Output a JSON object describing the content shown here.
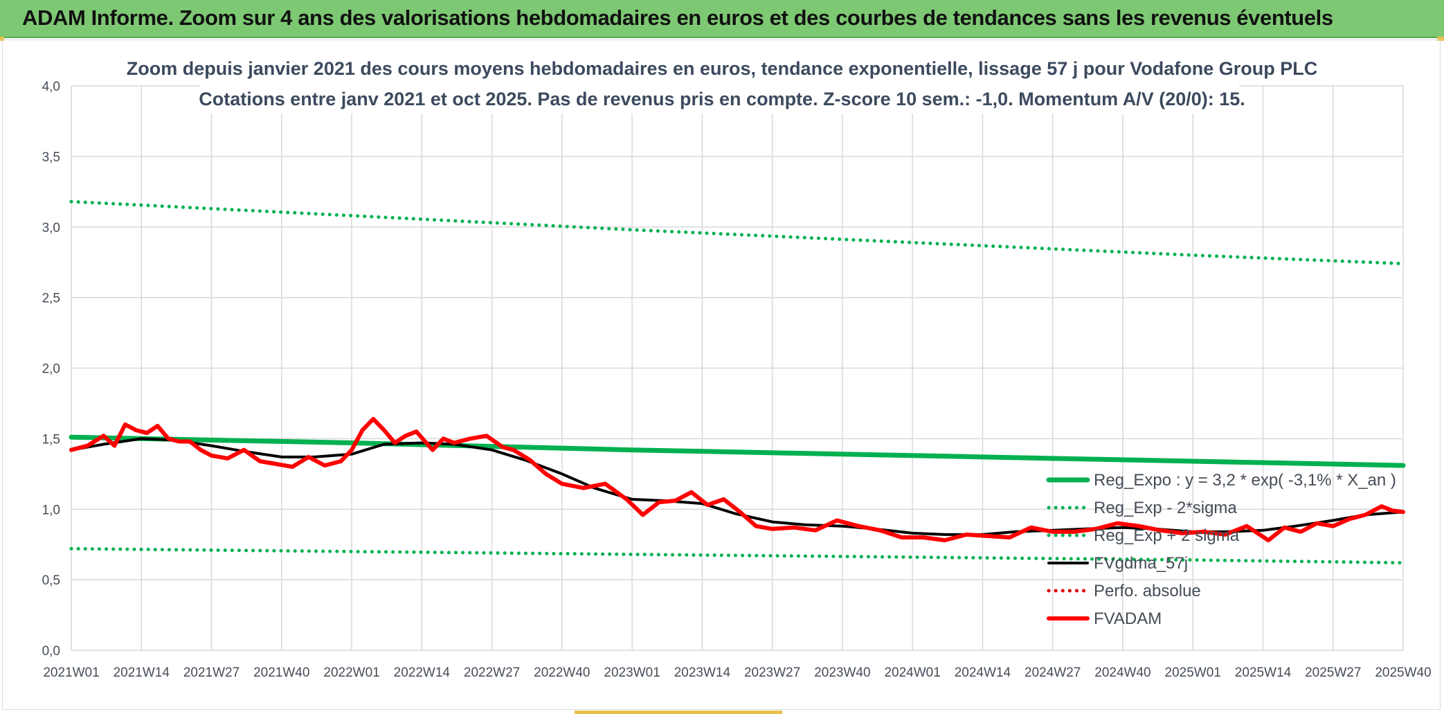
{
  "header": {
    "banner_title": "ADAM Informe. Zoom sur 4 ans des valorisations hebdomadaires en euros et des courbes de tendances sans les revenus éventuels",
    "banner_color": "#7dc873"
  },
  "chart_data": {
    "type": "line",
    "title": "Zoom depuis janvier 2021 des cours moyens hebdomadaires en euros, tendance exponentielle, lissage 57 j pour Vodafone Group PLC",
    "subtitle": "Cotations entre janv 2021 et oct 2025. Pas de revenus pris en compte. Z-score 10 sem.: -1,0. Momentum A/V (20/0): 15.",
    "xlabel": "",
    "ylabel": "",
    "ylim": [
      0,
      4
    ],
    "yticks": [
      "0,0",
      "0,5",
      "1,0",
      "1,5",
      "2,0",
      "2,5",
      "3,0",
      "3,5",
      "4,0"
    ],
    "x_categories": [
      "2021W01",
      "2021W14",
      "2021W27",
      "2021W40",
      "2022W01",
      "2022W14",
      "2022W27",
      "2022W40",
      "2023W01",
      "2023W14",
      "2023W27",
      "2023W40",
      "2024W01",
      "2024W14",
      "2024W27",
      "2024W40",
      "2025W01",
      "2025W14",
      "2025W27",
      "2025W40"
    ],
    "grid": true,
    "legend_position": "bottom-right",
    "series": [
      {
        "name": "Reg_Expo : y = 3,2 * exp( -3,1% *  X_an )",
        "style": "solid",
        "color": "#00b050",
        "x": [
          "2021W01",
          "2022W01",
          "2023W01",
          "2024W01",
          "2025W01",
          "2025W40"
        ],
        "values": [
          1.51,
          1.47,
          1.42,
          1.38,
          1.34,
          1.31
        ]
      },
      {
        "name": "Reg_Exp - 2*sigma",
        "style": "dotted",
        "color": "#00b050",
        "x": [
          "2021W01",
          "2022W01",
          "2023W01",
          "2024W01",
          "2025W01",
          "2025W40"
        ],
        "values": [
          0.72,
          0.7,
          0.68,
          0.66,
          0.64,
          0.62
        ]
      },
      {
        "name": "Reg_Exp + 2 sigma",
        "style": "dotted",
        "color": "#00b050",
        "x": [
          "2021W01",
          "2022W01",
          "2023W01",
          "2024W01",
          "2025W01",
          "2025W40"
        ],
        "values": [
          3.18,
          3.08,
          2.98,
          2.89,
          2.8,
          2.74
        ]
      },
      {
        "name": "FVgdma_57j",
        "style": "solid",
        "color": "#000000",
        "x": [
          "2021W01",
          "2021W07",
          "2021W14",
          "2021W20",
          "2021W27",
          "2021W33",
          "2021W40",
          "2021W46",
          "2022W01",
          "2022W07",
          "2022W14",
          "2022W20",
          "2022W27",
          "2022W33",
          "2022W40",
          "2022W46",
          "2023W01",
          "2023W07",
          "2023W14",
          "2023W20",
          "2023W27",
          "2023W33",
          "2023W40",
          "2023W46",
          "2024W01",
          "2024W07",
          "2024W14",
          "2024W20",
          "2024W27",
          "2024W33",
          "2024W40",
          "2024W46",
          "2025W01",
          "2025W07",
          "2025W14",
          "2025W20",
          "2025W27",
          "2025W33",
          "2025W40"
        ],
        "values": [
          1.42,
          1.46,
          1.5,
          1.49,
          1.45,
          1.41,
          1.37,
          1.37,
          1.39,
          1.46,
          1.47,
          1.46,
          1.42,
          1.35,
          1.25,
          1.15,
          1.07,
          1.06,
          1.04,
          0.97,
          0.91,
          0.89,
          0.88,
          0.86,
          0.83,
          0.82,
          0.82,
          0.84,
          0.85,
          0.86,
          0.87,
          0.86,
          0.84,
          0.84,
          0.85,
          0.88,
          0.92,
          0.96,
          0.98
        ]
      },
      {
        "name": "Perfo. absolue",
        "style": "dotted",
        "color": "#e00000",
        "x": [],
        "values": []
      },
      {
        "name": "FVADAM",
        "style": "solid",
        "color": "#ff0000",
        "x": [
          "2021W01",
          "2021W04",
          "2021W07",
          "2021W09",
          "2021W11",
          "2021W13",
          "2021W15",
          "2021W17",
          "2021W19",
          "2021W21",
          "2021W23",
          "2021W25",
          "2021W27",
          "2021W30",
          "2021W33",
          "2021W36",
          "2021W39",
          "2021W42",
          "2021W45",
          "2021W48",
          "2021W51",
          "2022W01",
          "2022W03",
          "2022W05",
          "2022W07",
          "2022W09",
          "2022W11",
          "2022W13",
          "2022W16",
          "2022W18",
          "2022W20",
          "2022W23",
          "2022W26",
          "2022W29",
          "2022W31",
          "2022W34",
          "2022W37",
          "2022W40",
          "2022W44",
          "2022W48",
          "2022W52",
          "2023W03",
          "2023W06",
          "2023W09",
          "2023W12",
          "2023W15",
          "2023W18",
          "2023W21",
          "2023W24",
          "2023W27",
          "2023W31",
          "2023W35",
          "2023W39",
          "2023W43",
          "2023W47",
          "2023W51",
          "2024W03",
          "2024W07",
          "2024W11",
          "2024W15",
          "2024W19",
          "2024W23",
          "2024W27",
          "2024W31",
          "2024W35",
          "2024W39",
          "2024W43",
          "2024W47",
          "2024W51",
          "2025W03",
          "2025W07",
          "2025W11",
          "2025W15",
          "2025W18",
          "2025W21",
          "2025W24",
          "2025W27",
          "2025W30",
          "2025W33",
          "2025W36",
          "2025W38",
          "2025W40"
        ],
        "values": [
          1.42,
          1.45,
          1.52,
          1.45,
          1.6,
          1.56,
          1.54,
          1.59,
          1.5,
          1.48,
          1.48,
          1.42,
          1.38,
          1.36,
          1.42,
          1.34,
          1.32,
          1.3,
          1.37,
          1.31,
          1.34,
          1.42,
          1.56,
          1.64,
          1.56,
          1.47,
          1.52,
          1.55,
          1.42,
          1.5,
          1.47,
          1.5,
          1.52,
          1.44,
          1.42,
          1.35,
          1.25,
          1.18,
          1.15,
          1.18,
          1.07,
          0.96,
          1.05,
          1.06,
          1.12,
          1.03,
          1.07,
          0.98,
          0.88,
          0.86,
          0.87,
          0.85,
          0.92,
          0.88,
          0.85,
          0.8,
          0.8,
          0.78,
          0.82,
          0.81,
          0.8,
          0.87,
          0.84,
          0.84,
          0.86,
          0.9,
          0.88,
          0.85,
          0.83,
          0.84,
          0.82,
          0.88,
          0.78,
          0.87,
          0.84,
          0.9,
          0.88,
          0.93,
          0.96,
          1.02,
          0.99,
          0.98
        ]
      }
    ]
  }
}
